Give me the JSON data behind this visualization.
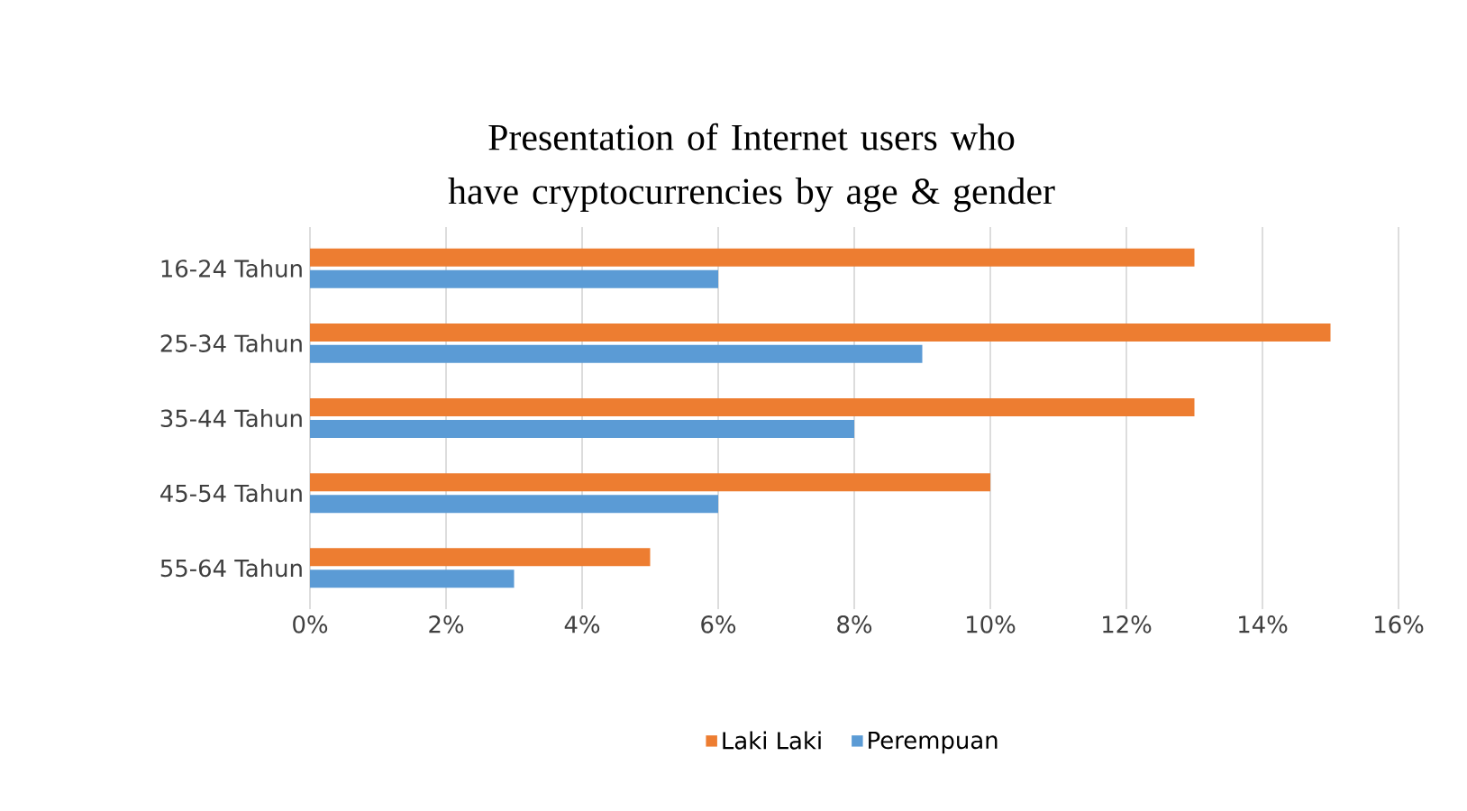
{
  "chart_data": {
    "type": "bar",
    "orientation": "horizontal",
    "title": "Presentation of Internet users who have cryptocurrencies by age & gender",
    "categories": [
      "16-24 Tahun",
      "25-34 Tahun",
      "35-44 Tahun",
      "45-54 Tahun",
      "55-64 Tahun"
    ],
    "series": [
      {
        "name": "Laki Laki",
        "color": "#ed7d31",
        "values": [
          13,
          15,
          13,
          10,
          5
        ]
      },
      {
        "name": "Perempuan",
        "color": "#5b9bd5",
        "values": [
          6,
          9,
          8,
          6,
          3
        ]
      }
    ],
    "xlim": [
      0,
      16
    ],
    "xticks": [
      {
        "value": 0,
        "label": "0%"
      },
      {
        "value": 2,
        "label": "2%"
      },
      {
        "value": 4,
        "label": "4%"
      },
      {
        "value": 6,
        "label": "6%"
      },
      {
        "value": 8,
        "label": "8%"
      },
      {
        "value": 10,
        "label": "10%"
      },
      {
        "value": 12,
        "label": "12%"
      },
      {
        "value": 14,
        "label": "14%"
      },
      {
        "value": 16,
        "label": "16%"
      }
    ],
    "grid": "x",
    "legend": "bottom"
  }
}
